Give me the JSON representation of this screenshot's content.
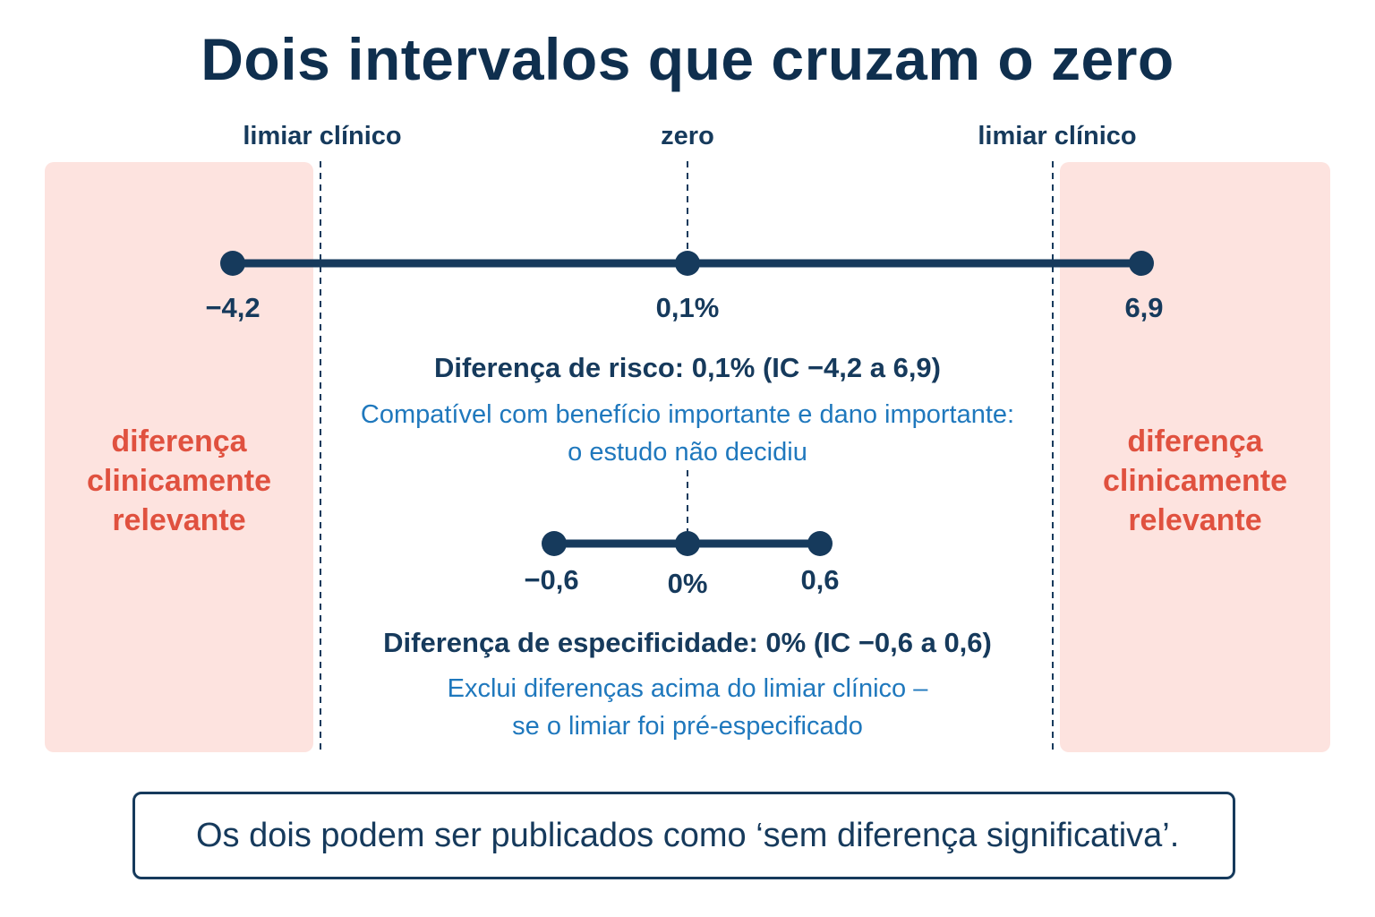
{
  "title": "Dois intervalos que cruzam o zero",
  "top_labels": {
    "left": "limiar clínico",
    "center": "zero",
    "right": "limiar clínico"
  },
  "zones": {
    "left": [
      "diferença",
      "clinicamente",
      "relevante"
    ],
    "right": [
      "diferença",
      "clinicamente",
      "relevante"
    ],
    "fill_color": "#fde3df",
    "text_color": "#e0513f"
  },
  "interval_1": {
    "lower": "−4,2",
    "point": "0,1%",
    "upper": "6,9",
    "caption": "Diferença de risco: 0,1% (IC −4,2 a 6,9)",
    "note": [
      "Compatível com benefício importante e dano importante:",
      "o estudo não decidiu"
    ]
  },
  "interval_2": {
    "lower": "−0,6",
    "point": "0%",
    "upper": "0,6",
    "caption": "Diferença de especificidade: 0% (IC −0,6 a 0,6)",
    "note": [
      "Exclui diferenças acima do limiar clínico –",
      "se o limiar foi pré-especificado"
    ]
  },
  "footer": "Os dois podem ser publicados como ‘sem diferença significativa’.",
  "colors": {
    "dark_navy": "#163a5c",
    "title": "#0f2f4e",
    "blue_text": "#1f78bd"
  }
}
